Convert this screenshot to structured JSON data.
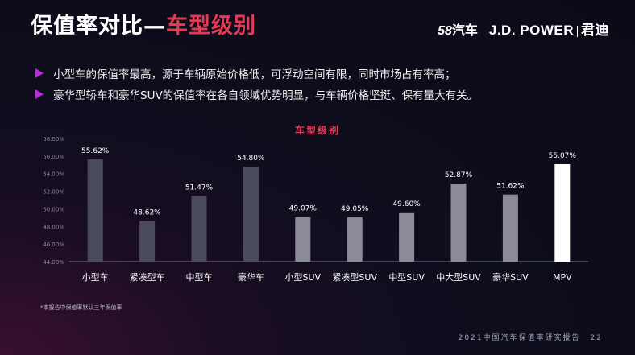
{
  "header": {
    "title_main": "保值率对比—",
    "title_accent": "车型级别",
    "logo_58_num": "58",
    "logo_58_text": "汽车",
    "logo_jd": "J.D. POWER",
    "logo_jd_cn": "君迪"
  },
  "bullets": [
    "小型车的保值率最高，源于车辆原始价格低，可浮动空间有限，同时市场占有率高；",
    "豪华型轿车和豪华SUV的保值率在各自领域优势明显，与车辆价格坚挺、保有量大有关。"
  ],
  "chart_data": {
    "type": "bar",
    "title": "车型级别",
    "categories": [
      "小型车",
      "紧凑型车",
      "中型车",
      "豪华车",
      "小型SUV",
      "紧凑型SUV",
      "中型SUV",
      "中大型SUV",
      "豪华SUV",
      "MPV"
    ],
    "values": [
      55.62,
      48.62,
      51.47,
      54.8,
      49.07,
      49.05,
      49.6,
      52.87,
      51.62,
      55.07
    ],
    "value_labels": [
      "55.62%",
      "48.62%",
      "51.47%",
      "54.80%",
      "49.07%",
      "49.05%",
      "49.60%",
      "52.87%",
      "51.62%",
      "55.07%"
    ],
    "ylim": [
      44,
      58
    ],
    "yticks": [
      44,
      46,
      48,
      50,
      52,
      54,
      56,
      58
    ],
    "ytick_labels": [
      "44.00%",
      "46.00%",
      "48.00%",
      "50.00%",
      "52.00%",
      "54.00%",
      "56.00%",
      "58.00%"
    ],
    "grid": false,
    "colors": [
      "#4a4c5e",
      "#4a4c5e",
      "#4a4c5e",
      "#4a4c5e",
      "#8a8a98",
      "#8a8a98",
      "#8a8a98",
      "#8a8a98",
      "#8a8a98",
      "#ffffff"
    ]
  },
  "footnote": "*本报告中保值率默认三年保值率",
  "footer": {
    "report": "2021中国汽车保值率研究报告",
    "page": "22"
  }
}
